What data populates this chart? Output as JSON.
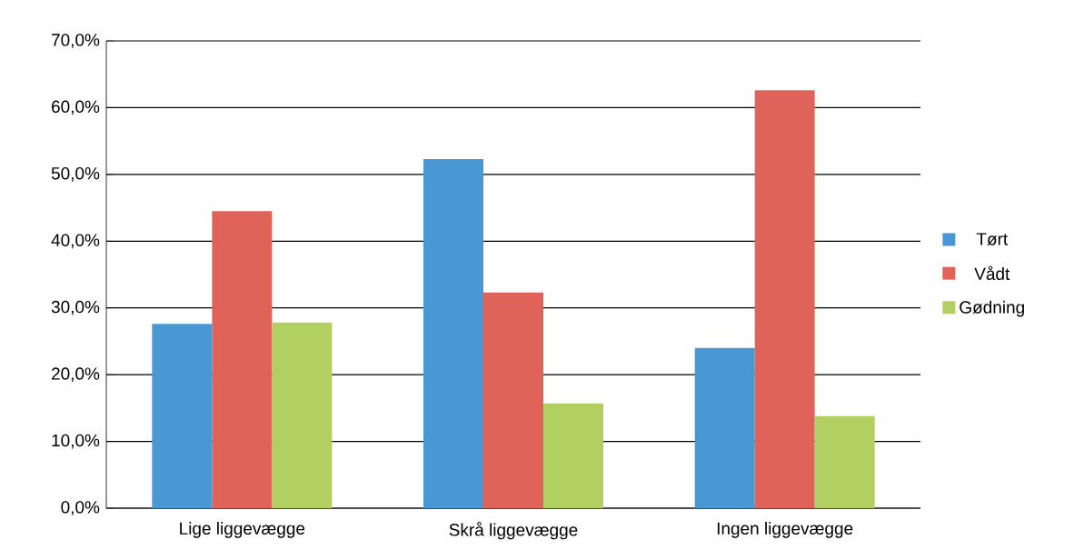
{
  "chart_data": {
    "type": "bar",
    "categories": [
      "Lige liggevægge",
      "Skrå liggevægge",
      "Ingen liggevægge"
    ],
    "series": [
      {
        "name": "Tørt",
        "color": "#4a98d3",
        "values": [
          27.6,
          52.3,
          24.0
        ]
      },
      {
        "name": "Vådt",
        "color": "#e0635a",
        "values": [
          44.5,
          32.3,
          62.6
        ]
      },
      {
        "name": "Gødning",
        "color": "#b2cf62",
        "values": [
          27.8,
          15.7,
          13.8
        ]
      }
    ],
    "ylim": [
      0,
      70
    ],
    "yticks": [
      {
        "value": 0,
        "label": "0,0%"
      },
      {
        "value": 10,
        "label": "10,0%"
      },
      {
        "value": 20,
        "label": "20,0%"
      },
      {
        "value": 30,
        "label": "30,0%"
      },
      {
        "value": 40,
        "label": "40,0%"
      },
      {
        "value": 50,
        "label": "50,0%"
      },
      {
        "value": 60,
        "label": "60,0%"
      },
      {
        "value": 70,
        "label": "70,0%"
      }
    ],
    "grid": "y",
    "legend": "right"
  }
}
